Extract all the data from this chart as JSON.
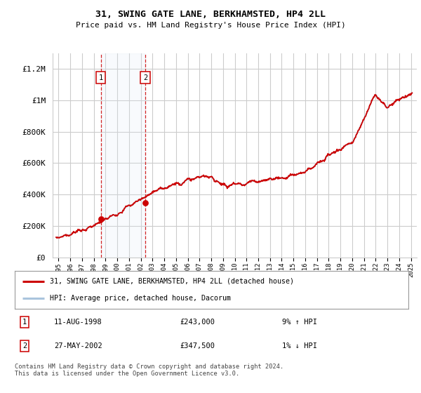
{
  "title": "31, SWING GATE LANE, BERKHAMSTED, HP4 2LL",
  "subtitle": "Price paid vs. HM Land Registry's House Price Index (HPI)",
  "bg_color": "#ffffff",
  "plot_bg_color": "#ffffff",
  "grid_color": "#cccccc",
  "hpi_line_color": "#aac4dd",
  "price_line_color": "#cc0000",
  "shade_color": "#dce9f5",
  "ylim": [
    0,
    1300000
  ],
  "yticks": [
    0,
    200000,
    400000,
    600000,
    800000,
    1000000,
    1200000
  ],
  "ytick_labels": [
    "£0",
    "£200K",
    "£400K",
    "£600K",
    "£800K",
    "£1M",
    "£1.2M"
  ],
  "sale1_date_x": 1998.6,
  "sale1_price": 243000,
  "sale2_date_x": 2002.4,
  "sale2_price": 347500,
  "xmin": 1994.5,
  "xmax": 2025.5,
  "legend_line1": "31, SWING GATE LANE, BERKHAMSTED, HP4 2LL (detached house)",
  "legend_line2": "HPI: Average price, detached house, Dacorum",
  "table_row1_num": "1",
  "table_row1_date": "11-AUG-1998",
  "table_row1_price": "£243,000",
  "table_row1_hpi": "9% ↑ HPI",
  "table_row2_num": "2",
  "table_row2_date": "27-MAY-2002",
  "table_row2_price": "£347,500",
  "table_row2_hpi": "1% ↓ HPI",
  "footer": "Contains HM Land Registry data © Crown copyright and database right 2024.\nThis data is licensed under the Open Government Licence v3.0."
}
